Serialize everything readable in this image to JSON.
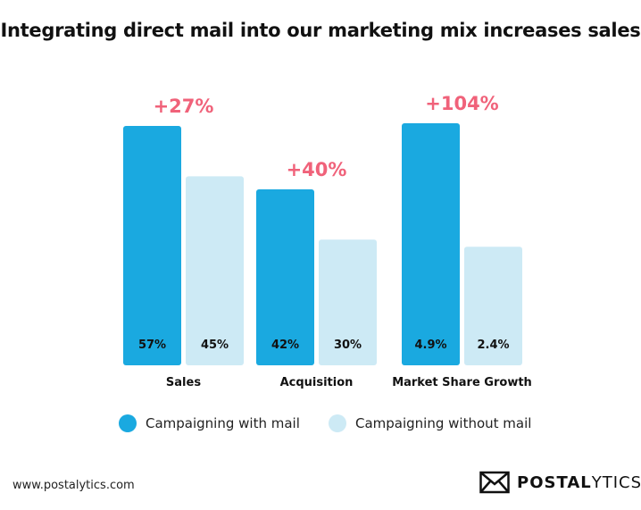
{
  "header": {
    "title": "Integrating direct mail into our marketing mix increases sales"
  },
  "colors": {
    "with_mail": "#1aa9e0",
    "without_mail": "#cdeaf5",
    "increase": "#f0627a"
  },
  "chart_data": {
    "type": "bar",
    "categories": [
      "Sales",
      "Acquisition",
      "Market Share Growth"
    ],
    "series": [
      {
        "name": "Campaigning with mail",
        "values": [
          57,
          42,
          4.9
        ],
        "labels": [
          "57%",
          "42%",
          "4.9%"
        ]
      },
      {
        "name": "Campaigning without mail",
        "values": [
          45,
          30,
          2.4
        ],
        "labels": [
          "45%",
          "30%",
          "2.4%"
        ]
      }
    ],
    "increase_labels": [
      "+27%",
      "+40%",
      "+104%"
    ],
    "legend": [
      "Campaigning with mail",
      "Campaigning without mail"
    ],
    "legend_position": "bottom",
    "grid": false
  },
  "footer": {
    "url": "www.postalytics.com",
    "brand_bold": "POSTAL",
    "brand_light": "YTICS",
    "brand_icon": "envelope-icon"
  }
}
